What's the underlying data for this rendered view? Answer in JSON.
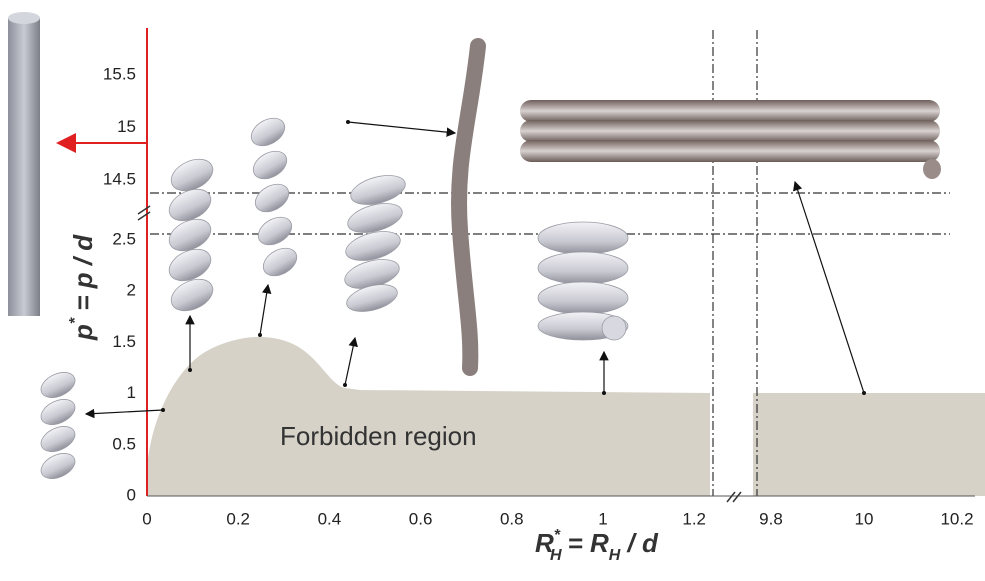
{
  "x_axis": {
    "ticks_left": [
      "0",
      "0.2",
      "0.4",
      "0.6",
      "0.8",
      "1",
      "1.2"
    ],
    "ticks_right": [
      "9.8",
      "10",
      "10.2"
    ],
    "label": {
      "symbol": "R",
      "sub": "H",
      "sup": "*",
      "rest": "= R",
      "sub2": "H",
      "rest2": " / d"
    }
  },
  "y_axis": {
    "ticks_low": [
      "0",
      "0.5",
      "1",
      "1.5",
      "2",
      "2.5"
    ],
    "ticks_high": [
      "14.5",
      "15",
      "15.5"
    ],
    "label": {
      "symbol": "p",
      "sup": "*",
      "rest": " = p / d"
    }
  },
  "region_label": "Forbidden region"
}
